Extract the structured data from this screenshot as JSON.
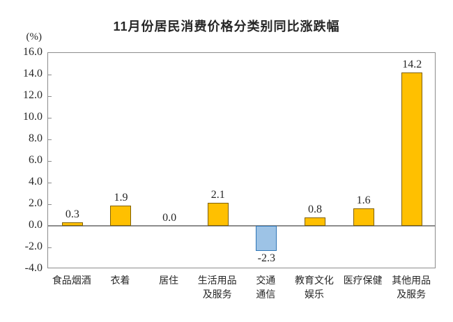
{
  "title": "11月份居民消费价格分类别同比涨跌幅",
  "y_axis": {
    "unit_label": "(%)",
    "tick_labels": [
      "16.0",
      "14.0",
      "12.0",
      "10.0",
      "8.0",
      "6.0",
      "4.0",
      "2.0",
      "0.0",
      "-2.0",
      "-4.0"
    ]
  },
  "chart_data": {
    "type": "bar",
    "title": "11月份居民消费价格分类别同比涨跌幅",
    "ylabel": "(%)",
    "ylim": [
      -4,
      16
    ],
    "y_step": 2,
    "grid": false,
    "legend": "none",
    "categories": [
      "食品烟酒",
      "衣着",
      "居住",
      "生活用品及服务",
      "交通通信",
      "教育文化娱乐",
      "医疗保健",
      "其他用品及服务"
    ],
    "category_label_lines": [
      [
        "食品烟酒"
      ],
      [
        "衣着"
      ],
      [
        "居住"
      ],
      [
        "生活用品",
        "及服务"
      ],
      [
        "交通",
        "通信"
      ],
      [
        "教育文化",
        "娱乐"
      ],
      [
        "医疗保健"
      ],
      [
        "其他用品",
        "及服务"
      ]
    ],
    "values": [
      0.3,
      1.9,
      0.0,
      2.1,
      -2.3,
      0.8,
      1.6,
      14.2
    ],
    "value_labels": [
      "0.3",
      "1.9",
      "0.0",
      "2.1",
      "-2.3",
      "0.8",
      "1.6",
      "14.2"
    ],
    "colors": {
      "positive_fill": "#FFC000",
      "positive_border": "#7F6000",
      "negative_fill": "#9DC3E6",
      "negative_border": "#2E75B6",
      "axis": "#8C8C8C",
      "text": "#262626"
    }
  }
}
